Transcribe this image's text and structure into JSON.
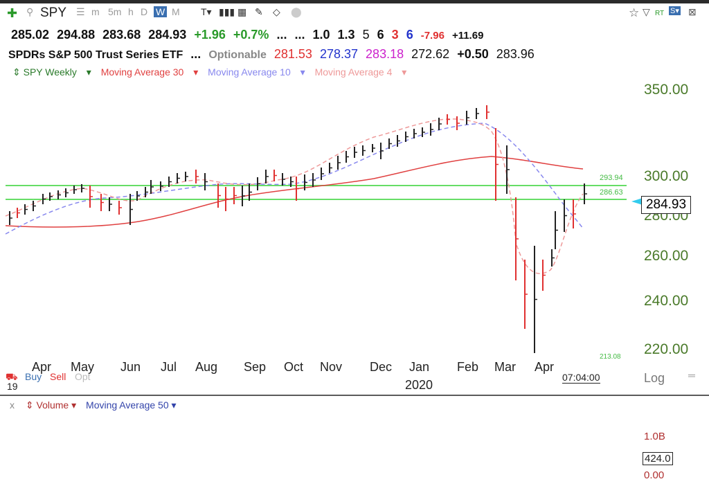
{
  "toolbar": {
    "symbol": "SPY",
    "timeframes": [
      "m",
      "5m",
      "h",
      "D",
      "W",
      "M"
    ],
    "active_timeframe": "W"
  },
  "quote_line1": {
    "open": "285.02",
    "high": "294.88",
    "low": "283.68",
    "close": "284.93",
    "change": "+1.96",
    "change_pct": "+0.7%",
    "dots": "...",
    "dots2": "...",
    "v1": "1.0",
    "v2": "1.3",
    "r1": "5",
    "r2": "6",
    "r3": "3",
    "r4": "6",
    "n1": "-7.96",
    "n2": "+11.69"
  },
  "quote_line2": {
    "name": "SPDRs S&P 500 Trust Series ETF",
    "dots": "...",
    "optionable": "Optionable",
    "ma30": "281.53",
    "ma10": "278.37",
    "ma4": "283.18",
    "other": "272.62",
    "chg": "+0.50",
    "last": "283.96"
  },
  "legend": {
    "series_name": "SPY Weekly",
    "ma30": "Moving Average 30",
    "ma10": "Moving Average 10",
    "ma4": "Moving Average 4"
  },
  "y_axis": [
    "350.00",
    "300.00",
    "280.00",
    "260.00",
    "240.00",
    "220.00"
  ],
  "hlines": [
    "293.94",
    "286.63"
  ],
  "current_price": "284.93",
  "x_axis": [
    "Apr",
    "May",
    "Jun",
    "Jul",
    "Aug",
    "Sep",
    "Oct",
    "Nov",
    "Dec",
    "Jan",
    "Feb",
    "Mar",
    "Apr"
  ],
  "year_label": "2020",
  "bottom_left": {
    "buy": "Buy",
    "sell": "Sell",
    "opt": "Opt",
    "year": "19"
  },
  "time_label": "07:04:00",
  "log_label": "Log",
  "low_marker": "213.08",
  "volume": {
    "title": "Volume",
    "ma": "Moving Average 50",
    "axis": [
      "1.0B",
      "424.0",
      "0.00"
    ],
    "close_x": "x"
  },
  "colors": {
    "up": "#222222",
    "down": "#e03030",
    "ma30": "#e04040",
    "ma10": "#8888ee",
    "ma4": "#ee9999",
    "hline": "#66dd66",
    "axis": "#4a7a2a"
  }
}
